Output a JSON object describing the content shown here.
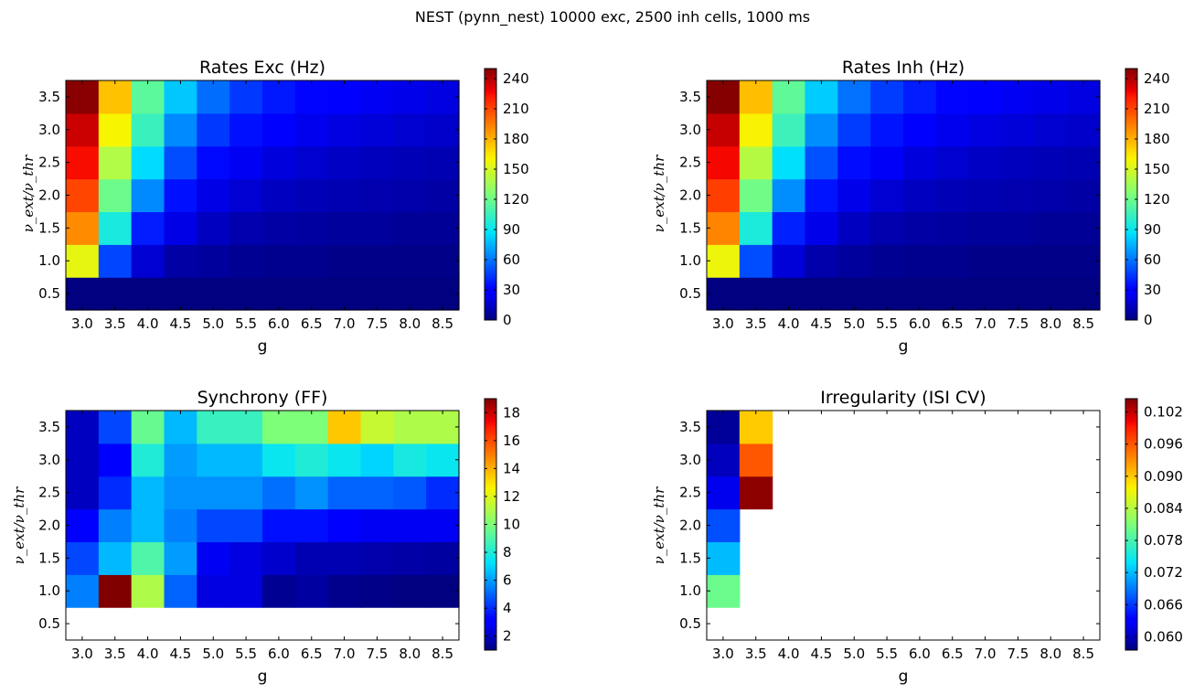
{
  "figure": {
    "suptitle": "NEST (pynn_nest) 10000 exc, 2500 inh cells, 1000 ms"
  },
  "chart_data": [
    {
      "type": "heatmap",
      "title": "Rates Exc (Hz)",
      "xlabel": "g",
      "ylabel": "ν_ext/ν_thr",
      "x": [
        3.0,
        3.5,
        4.0,
        4.5,
        5.0,
        5.5,
        6.0,
        6.5,
        7.0,
        7.5,
        8.0,
        8.5
      ],
      "y": [
        0.5,
        1.0,
        1.5,
        2.0,
        2.5,
        3.0,
        3.5
      ],
      "x_ticks": [
        "3.0",
        "3.5",
        "4.0",
        "4.5",
        "5.0",
        "5.5",
        "6.0",
        "6.5",
        "7.0",
        "7.5",
        "8.0",
        "8.5"
      ],
      "y_ticks": [
        "0.5",
        "1.0",
        "1.5",
        "2.0",
        "2.5",
        "3.0",
        "3.5"
      ],
      "colorbar_ticks": [
        "0",
        "30",
        "60",
        "90",
        "120",
        "150",
        "180",
        "210",
        "240"
      ],
      "vmin": 0,
      "vmax": 250,
      "z": [
        [
          0,
          0,
          0,
          0,
          0,
          0,
          0,
          0,
          0,
          0,
          0,
          0
        ],
        [
          155,
          48,
          18,
          8,
          6,
          4,
          3,
          3,
          2,
          2,
          2,
          2
        ],
        [
          190,
          95,
          38,
          22,
          14,
          10,
          8,
          7,
          6,
          6,
          5,
          5
        ],
        [
          210,
          120,
          65,
          35,
          22,
          18,
          14,
          12,
          11,
          10,
          9,
          8
        ],
        [
          225,
          140,
          85,
          50,
          33,
          25,
          20,
          17,
          15,
          13,
          12,
          11
        ],
        [
          235,
          160,
          105,
          65,
          45,
          35,
          28,
          24,
          21,
          19,
          17,
          16
        ],
        [
          248,
          175,
          115,
          80,
          58,
          45,
          37,
          32,
          28,
          25,
          23,
          21
        ]
      ]
    },
    {
      "type": "heatmap",
      "title": "Rates Inh (Hz)",
      "xlabel": "g",
      "ylabel": "ν_ext/ν_thr",
      "x": [
        3.0,
        3.5,
        4.0,
        4.5,
        5.0,
        5.5,
        6.0,
        6.5,
        7.0,
        7.5,
        8.0,
        8.5
      ],
      "y": [
        0.5,
        1.0,
        1.5,
        2.0,
        2.5,
        3.0,
        3.5
      ],
      "x_ticks": [
        "3.0",
        "3.5",
        "4.0",
        "4.5",
        "5.0",
        "5.5",
        "6.0",
        "6.5",
        "7.0",
        "7.5",
        "8.0",
        "8.5"
      ],
      "y_ticks": [
        "0.5",
        "1.0",
        "1.5",
        "2.0",
        "2.5",
        "3.0",
        "3.5"
      ],
      "colorbar_ticks": [
        "0",
        "30",
        "60",
        "90",
        "120",
        "150",
        "180",
        "210",
        "240"
      ],
      "vmin": 0,
      "vmax": 250,
      "z": [
        [
          0,
          0,
          0,
          0,
          0,
          0,
          0,
          0,
          0,
          0,
          0,
          0
        ],
        [
          157,
          50,
          19,
          9,
          6,
          4,
          3,
          3,
          2,
          2,
          2,
          2
        ],
        [
          192,
          96,
          39,
          23,
          14,
          10,
          8,
          7,
          6,
          6,
          5,
          5
        ],
        [
          212,
          121,
          66,
          36,
          23,
          18,
          14,
          12,
          11,
          10,
          9,
          8
        ],
        [
          226,
          141,
          86,
          51,
          34,
          26,
          20,
          17,
          15,
          13,
          12,
          11
        ],
        [
          236,
          161,
          106,
          66,
          46,
          36,
          29,
          24,
          21,
          19,
          17,
          16
        ],
        [
          249,
          176,
          116,
          81,
          59,
          46,
          38,
          32,
          28,
          25,
          23,
          21
        ]
      ]
    },
    {
      "type": "heatmap",
      "title": "Synchrony (FF)",
      "xlabel": "g",
      "ylabel": "ν_ext/ν_thr",
      "x": [
        3.0,
        3.5,
        4.0,
        4.5,
        5.0,
        5.5,
        6.0,
        6.5,
        7.0,
        7.5,
        8.0,
        8.5
      ],
      "y": [
        0.5,
        1.0,
        1.5,
        2.0,
        2.5,
        3.0,
        3.5
      ],
      "x_ticks": [
        "3.0",
        "3.5",
        "4.0",
        "4.5",
        "5.0",
        "5.5",
        "6.0",
        "6.5",
        "7.0",
        "7.5",
        "8.0",
        "8.5"
      ],
      "y_ticks": [
        "0.5",
        "1.0",
        "1.5",
        "2.0",
        "2.5",
        "3.0",
        "3.5"
      ],
      "colorbar_ticks": [
        "2",
        "4",
        "6",
        "8",
        "10",
        "12",
        "14",
        "16",
        "18"
      ],
      "vmin": 1,
      "vmax": 19,
      "z": [
        [
          null,
          null,
          null,
          null,
          null,
          null,
          null,
          null,
          null,
          null,
          null,
          null
        ],
        [
          5.5,
          19.0,
          11.0,
          5.0,
          2.5,
          2.5,
          1.3,
          1.5,
          1.2,
          1.1,
          1.0,
          1.0
        ],
        [
          4.5,
          6.5,
          9.0,
          6.0,
          2.8,
          2.5,
          2.2,
          1.8,
          1.8,
          1.7,
          1.6,
          1.5
        ],
        [
          3.0,
          5.5,
          6.5,
          5.5,
          4.5,
          4.5,
          3.5,
          3.5,
          3.0,
          2.8,
          2.8,
          2.8
        ],
        [
          2.0,
          4.0,
          6.5,
          5.8,
          5.8,
          5.8,
          5.2,
          5.8,
          5.0,
          5.0,
          4.8,
          4.0
        ],
        [
          2.0,
          3.0,
          8.0,
          6.0,
          6.5,
          6.5,
          7.5,
          8.0,
          7.5,
          7.0,
          7.8,
          7.5
        ],
        [
          2.0,
          4.5,
          9.5,
          6.5,
          8.5,
          8.5,
          10.0,
          10.0,
          13.5,
          11.5,
          11.0,
          11.0
        ]
      ]
    },
    {
      "type": "heatmap",
      "title": "Irregularity (ISI CV)",
      "xlabel": "g",
      "ylabel": "ν_ext/ν_thr",
      "x": [
        3.0,
        3.5,
        4.0,
        4.5,
        5.0,
        5.5,
        6.0,
        6.5,
        7.0,
        7.5,
        8.0,
        8.5
      ],
      "y": [
        0.5,
        1.0,
        1.5,
        2.0,
        2.5,
        3.0,
        3.5
      ],
      "x_ticks": [
        "3.0",
        "3.5",
        "4.0",
        "4.5",
        "5.0",
        "5.5",
        "6.0",
        "6.5",
        "7.0",
        "7.5",
        "8.0",
        "8.5"
      ],
      "y_ticks": [
        "0.5",
        "1.0",
        "1.5",
        "2.0",
        "2.5",
        "3.0",
        "3.5"
      ],
      "colorbar_ticks": [
        "0.060",
        "0.066",
        "0.072",
        "0.078",
        "0.084",
        "0.090",
        "0.096",
        "0.102"
      ],
      "vmin": 0.0575,
      "vmax": 0.1045,
      "z": [
        [
          null,
          null,
          null,
          null,
          null,
          null,
          null,
          null,
          null,
          null,
          null,
          null
        ],
        [
          0.08,
          null,
          null,
          null,
          null,
          null,
          null,
          null,
          null,
          null,
          null,
          null
        ],
        [
          0.072,
          null,
          null,
          null,
          null,
          null,
          null,
          null,
          null,
          null,
          null,
          null
        ],
        [
          0.067,
          null,
          null,
          null,
          null,
          null,
          null,
          null,
          null,
          null,
          null,
          null
        ],
        [
          0.062,
          0.104,
          null,
          null,
          null,
          null,
          null,
          null,
          null,
          null,
          null,
          null
        ],
        [
          0.06,
          0.096,
          null,
          null,
          null,
          null,
          null,
          null,
          null,
          null,
          null,
          null
        ],
        [
          0.0585,
          0.09,
          null,
          null,
          null,
          null,
          null,
          null,
          null,
          null,
          null,
          null
        ]
      ]
    }
  ]
}
